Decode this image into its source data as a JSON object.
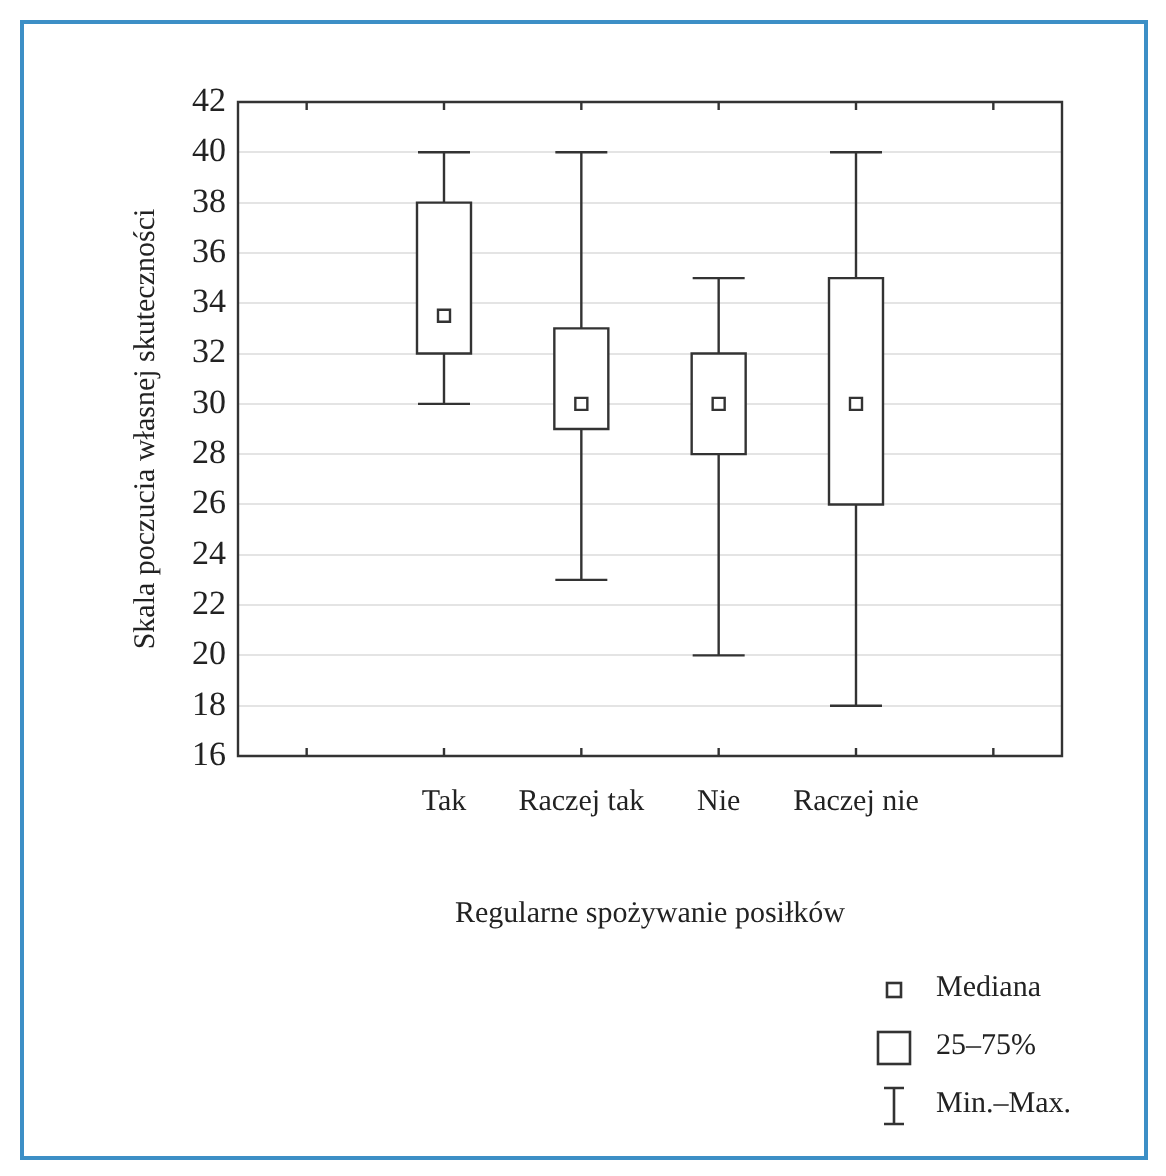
{
  "chart_data": {
    "type": "box",
    "xlabel": "Regularne spożywanie posiłków",
    "ylabel": "Skala poczucia własnej skuteczności",
    "categories": [
      null,
      "Tak",
      "Raczej tak",
      "Nie",
      "Raczej nie",
      null
    ],
    "boxes": [
      null,
      {
        "low": 30,
        "q1": 32,
        "median": 33.5,
        "q3": 38,
        "high": 40
      },
      {
        "low": 23,
        "q1": 29,
        "median": 30,
        "q3": 33,
        "high": 40
      },
      {
        "low": 20,
        "q1": 28,
        "median": 30,
        "q3": 32,
        "high": 35
      },
      {
        "low": 18,
        "q1": 26,
        "median": 30,
        "q3": 35,
        "high": 40
      },
      null
    ],
    "ylim": [
      16,
      42
    ],
    "yticks": [
      16,
      18,
      20,
      22,
      24,
      26,
      28,
      30,
      32,
      34,
      36,
      38,
      40,
      42
    ],
    "grid": "y",
    "annotations": [
      "Mediana",
      "25–75%",
      "Min.–Max."
    ]
  }
}
